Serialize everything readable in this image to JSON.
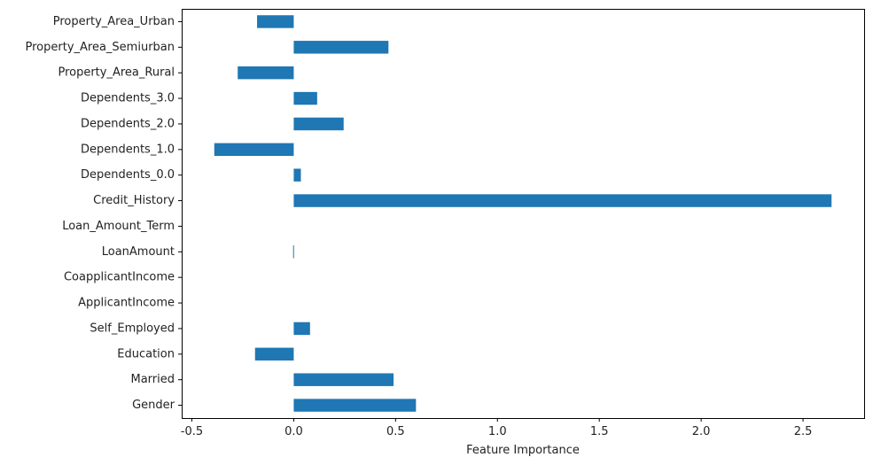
{
  "chart_data": {
    "type": "bar",
    "orientation": "horizontal",
    "title": "",
    "xlabel": "Feature Importance",
    "ylabel": "",
    "xlim": [
      -0.55,
      2.8
    ],
    "xticks": [
      -0.5,
      0.0,
      0.5,
      1.0,
      1.5,
      2.0,
      2.5
    ],
    "xtick_labels": [
      "-0.5",
      "0.0",
      "0.5",
      "1.0",
      "1.5",
      "2.0",
      "2.5"
    ],
    "grid": false,
    "bar_color": "#1f77b4",
    "categories": [
      "Gender",
      "Married",
      "Education",
      "Self_Employed",
      "ApplicantIncome",
      "CoapplicantIncome",
      "LoanAmount",
      "Loan_Amount_Term",
      "Credit_History",
      "Dependents_0.0",
      "Dependents_1.0",
      "Dependents_2.0",
      "Dependents_3.0",
      "Property_Area_Rural",
      "Property_Area_Semiurban",
      "Property_Area_Urban"
    ],
    "values": [
      0.6,
      0.49,
      -0.19,
      0.08,
      0.0,
      0.0,
      -0.003,
      0.0,
      2.64,
      0.035,
      -0.39,
      0.245,
      0.115,
      -0.275,
      0.465,
      -0.18
    ]
  }
}
